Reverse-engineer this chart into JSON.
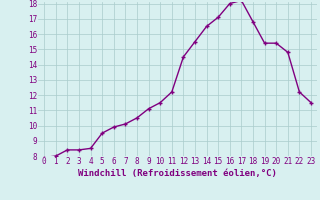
{
  "x": [
    0,
    1,
    2,
    3,
    4,
    5,
    6,
    7,
    8,
    9,
    10,
    11,
    12,
    13,
    14,
    15,
    16,
    17,
    18,
    19,
    20,
    21,
    22,
    23
  ],
  "y": [
    7.9,
    8.0,
    8.4,
    8.4,
    8.5,
    9.5,
    9.9,
    10.1,
    10.5,
    11.1,
    11.5,
    12.2,
    14.5,
    15.5,
    16.5,
    17.1,
    18.0,
    18.2,
    16.8,
    15.4,
    15.4,
    14.8,
    12.2,
    11.5
  ],
  "line_color": "#800080",
  "marker": "+",
  "bg_color": "#d8f0f0",
  "grid_color": "#aacccc",
  "xlabel": "Windchill (Refroidissement éolien,°C)",
  "ylim": [
    8,
    18
  ],
  "xlim": [
    -0.5,
    23.5
  ],
  "yticks": [
    8,
    9,
    10,
    11,
    12,
    13,
    14,
    15,
    16,
    17,
    18
  ],
  "xticks": [
    0,
    1,
    2,
    3,
    4,
    5,
    6,
    7,
    8,
    9,
    10,
    11,
    12,
    13,
    14,
    15,
    16,
    17,
    18,
    19,
    20,
    21,
    22,
    23
  ],
  "label_color": "#800080",
  "xlabel_fontsize": 6.5,
  "tick_fontsize": 5.5,
  "line_width": 1.0,
  "marker_size": 3.5,
  "marker_edge_width": 1.0
}
